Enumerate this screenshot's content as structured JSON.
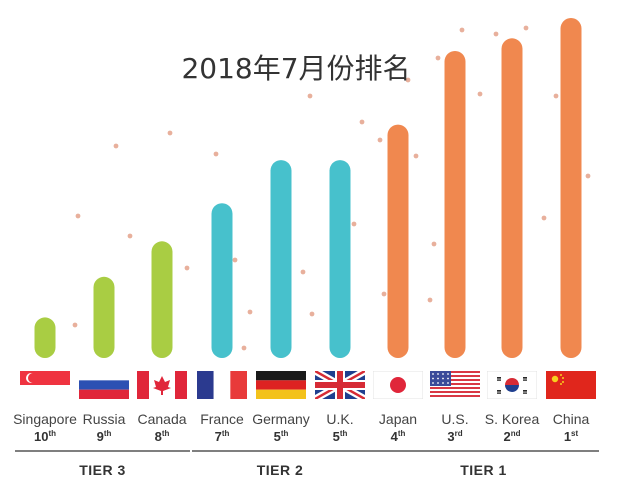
{
  "chart_data": {
    "type": "bar",
    "title": "2018年7月份排名",
    "categories": [
      "Singapore",
      "Russia",
      "Canada",
      "France",
      "Germany",
      "U.K.",
      "Japan",
      "U.S.",
      "S. Korea",
      "China"
    ],
    "ranks": [
      {
        "num": "10",
        "suffix": "th"
      },
      {
        "num": "9",
        "suffix": "th"
      },
      {
        "num": "8",
        "suffix": "th"
      },
      {
        "num": "7",
        "suffix": "th"
      },
      {
        "num": "5",
        "suffix": "th"
      },
      {
        "num": "5",
        "suffix": "th"
      },
      {
        "num": "4",
        "suffix": "th"
      },
      {
        "num": "3",
        "suffix": "rd"
      },
      {
        "num": "2",
        "suffix": "nd"
      },
      {
        "num": "1",
        "suffix": "st"
      }
    ],
    "values": [
      1.6,
      3.2,
      4.6,
      6.1,
      7.8,
      7.8,
      9.2,
      12.1,
      12.6,
      13.4
    ],
    "tier_of_bar": [
      2,
      2,
      2,
      1,
      1,
      1,
      0,
      0,
      0,
      0
    ],
    "tiers": [
      {
        "label": "TIER 1",
        "color": "#f0884f",
        "start": 6,
        "end": 9
      },
      {
        "label": "TIER 2",
        "color": "#47c1cc",
        "start": 3,
        "end": 5
      },
      {
        "label": "TIER 3",
        "color": "#a9cd43",
        "start": 0,
        "end": 2
      }
    ],
    "flags": [
      "singapore-flag",
      "russia-flag",
      "canada-flag",
      "france-flag",
      "germany-flag",
      "uk-flag",
      "japan-flag",
      "us-flag",
      "south-korea-flag",
      "china-flag"
    ],
    "ylim": [
      0,
      13.4
    ],
    "grid": false,
    "legend": "none"
  }
}
